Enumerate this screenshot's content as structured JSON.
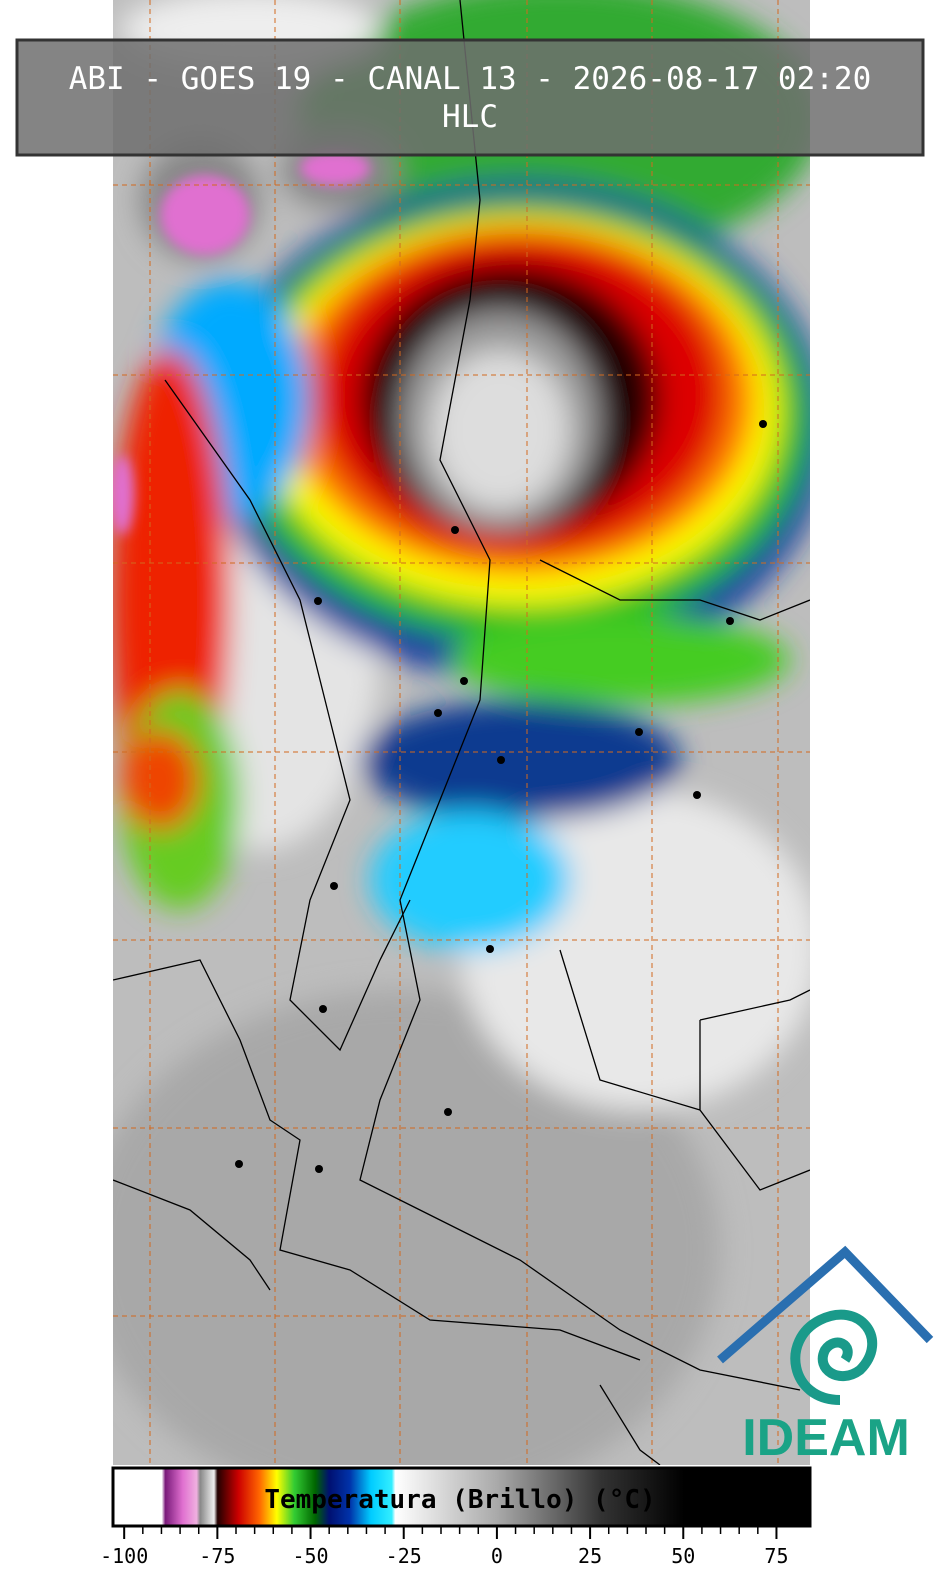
{
  "header": {
    "title": "ABI - GOES 19 - CANAL 13 - 2026-08-17 02:20",
    "subtitle": "HLC"
  },
  "colorbar": {
    "label": "Temperatura (Brillo) (°C)",
    "range": [
      -103,
      84
    ],
    "ticks": [
      -100,
      -75,
      -50,
      -25,
      0,
      25,
      50,
      75
    ]
  },
  "logo": {
    "text": "IDEAM"
  }
}
